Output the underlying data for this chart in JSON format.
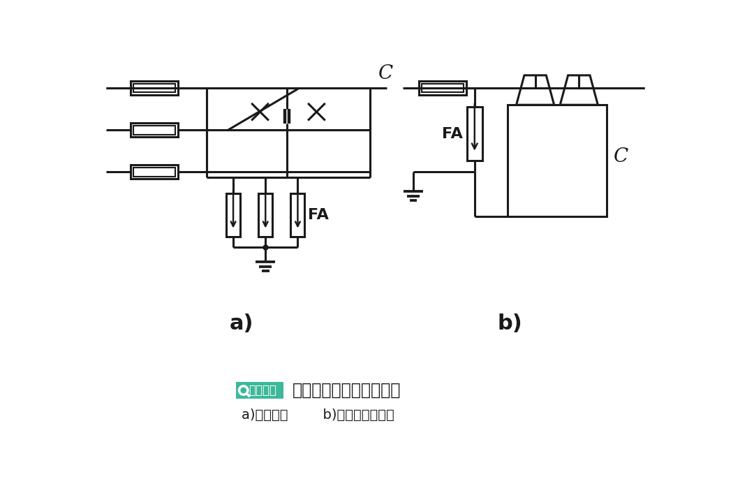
{
  "bg_color": "#ffffff",
  "line_color": "#1a1a1a",
  "line_width": 2.2,
  "title_text": "线路移相电容器保护接线",
  "subtitle_text": "a)接线方法        b)避雷器安装方法",
  "brand_text": "电工知库",
  "label_a": "a)",
  "label_b": "b)",
  "label_FA_a": "FA",
  "label_FA_b": "FA",
  "label_C_a": "C",
  "label_C_b": "C",
  "brand_color": "#3db89a",
  "figsize": [
    10.8,
    7.19
  ],
  "dpi": 100
}
